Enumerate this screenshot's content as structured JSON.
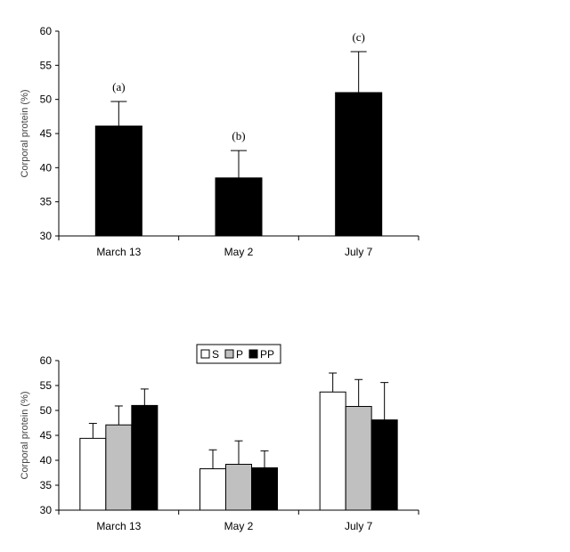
{
  "chart_data": [
    {
      "type": "bar",
      "categories": [
        "March 13",
        "May 2",
        "July 7"
      ],
      "values": [
        46.1,
        38.5,
        51.0
      ],
      "errors": [
        3.6,
        4.0,
        6.0
      ],
      "annotations": [
        "(a)",
        "(b)",
        "(c)"
      ],
      "ylabel": "Corporal protein (%)",
      "ylim": [
        30,
        60
      ],
      "yticks": [
        30,
        35,
        40,
        45,
        50,
        55,
        60
      ],
      "colors": {
        "bar": "#000000"
      },
      "grid": false
    },
    {
      "type": "bar",
      "categories": [
        "March 13",
        "May 2",
        "July 7"
      ],
      "series": [
        {
          "name": "S",
          "values": [
            44.4,
            38.3,
            53.7
          ],
          "errors": [
            3.0,
            3.8,
            3.8
          ],
          "color": "#ffffff"
        },
        {
          "name": "P",
          "values": [
            47.1,
            39.2,
            50.8
          ],
          "errors": [
            3.8,
            4.7,
            5.4
          ],
          "color": "#c0c0c0"
        },
        {
          "name": "PP",
          "values": [
            51.0,
            38.5,
            48.1
          ],
          "errors": [
            3.3,
            3.4,
            7.5
          ],
          "color": "#000000"
        }
      ],
      "ylabel": "Corporal protein (%)",
      "ylim": [
        30,
        60
      ],
      "yticks": [
        30,
        35,
        40,
        45,
        50,
        55,
        60
      ],
      "legend": "top",
      "grid": false
    }
  ]
}
